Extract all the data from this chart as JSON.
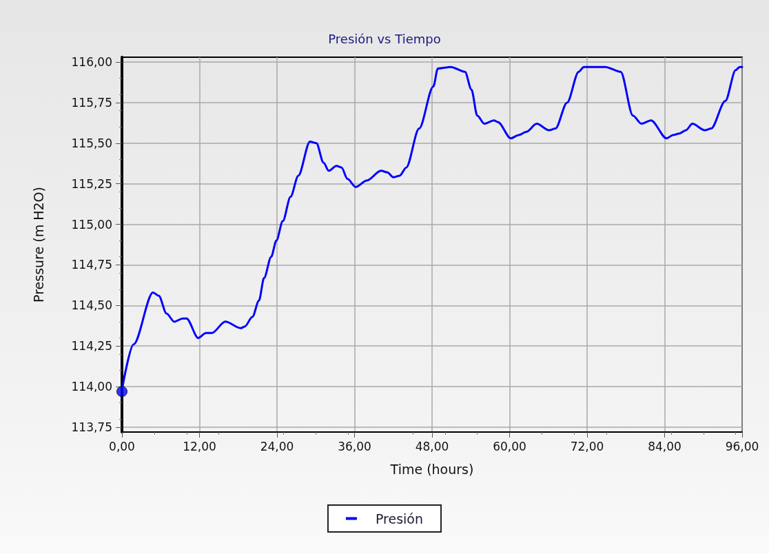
{
  "chart_data": {
    "type": "line",
    "title": "Presión vs Tiempo",
    "xlabel": "Time (hours)",
    "ylabel": "Pressure (m H2O)",
    "xlim": [
      0,
      96
    ],
    "xticks": [
      {
        "value": 0,
        "label": "0,00"
      },
      {
        "value": 12,
        "label": "12,00"
      },
      {
        "value": 24,
        "label": "24,00"
      },
      {
        "value": 36,
        "label": "36,00"
      },
      {
        "value": 48,
        "label": "48,00"
      },
      {
        "value": 60,
        "label": "60,00"
      },
      {
        "value": 72,
        "label": "72,00"
      },
      {
        "value": 84,
        "label": "84,00"
      },
      {
        "value": 96,
        "label": "96,00"
      }
    ],
    "ylim": [
      113.72,
      116.03
    ],
    "yticks": [
      {
        "value": 113.75,
        "label": "113,75"
      },
      {
        "value": 114,
        "label": "114,00"
      },
      {
        "value": 114.25,
        "label": "114,25"
      },
      {
        "value": 114.5,
        "label": "114,50"
      },
      {
        "value": 114.75,
        "label": "114,75"
      },
      {
        "value": 115,
        "label": "115,00"
      },
      {
        "value": 115.25,
        "label": "115,25"
      },
      {
        "value": 115.5,
        "label": "115,50"
      },
      {
        "value": 115.75,
        "label": "115,75"
      },
      {
        "value": 116,
        "label": "116,00"
      }
    ],
    "grid": true,
    "legend": "bottom",
    "line_style": "solid",
    "series": [
      {
        "name": "Presión",
        "color": "#0000ff",
        "marker": "none",
        "x": [
          0,
          1.8,
          4.8,
          5.7,
          6.9,
          8.1,
          9.4,
          10,
          11.8,
          13,
          13.9,
          16,
          18.4,
          19,
          20.2,
          21.2,
          22,
          23.1,
          23.9,
          24.9,
          26.1,
          27.3,
          29.1,
          30.1,
          31.2,
          32,
          33.2,
          34,
          34.9,
          36.2,
          37.9,
          40.1,
          41.1,
          42,
          43,
          44,
          46,
          48.2,
          48.9,
          50.9,
          53.1,
          54.1,
          55,
          56.1,
          57.6,
          58.2,
          60.2,
          61.4,
          62.6,
          64.2,
          66.1,
          67.1,
          68.9,
          70.7,
          71.5,
          74.8,
          77.2,
          79.1,
          80.4,
          81.9,
          84.3,
          85.3,
          86.3,
          87.3,
          88.3,
          90.2,
          91.2,
          93.4,
          95,
          95.6,
          96
        ],
        "values": [
          113.98,
          114.26,
          114.58,
          114.56,
          114.45,
          114.4,
          114.42,
          114.42,
          114.3,
          114.33,
          114.33,
          114.4,
          114.36,
          114.37,
          114.43,
          114.53,
          114.67,
          114.8,
          114.9,
          115.02,
          115.17,
          115.3,
          115.51,
          115.5,
          115.38,
          115.33,
          115.36,
          115.35,
          115.28,
          115.23,
          115.27,
          115.33,
          115.32,
          115.29,
          115.3,
          115.35,
          115.59,
          115.85,
          115.96,
          115.97,
          115.94,
          115.83,
          115.67,
          115.62,
          115.64,
          115.63,
          115.53,
          115.55,
          115.57,
          115.62,
          115.58,
          115.59,
          115.75,
          115.94,
          115.97,
          115.97,
          115.94,
          115.67,
          115.62,
          115.64,
          115.53,
          115.55,
          115.56,
          115.58,
          115.62,
          115.58,
          115.59,
          115.76,
          115.95,
          115.97,
          115.97
        ]
      },
      {
        "type": "scatter",
        "color": "#0000ff",
        "marker": "circle",
        "x": [
          0
        ],
        "values": [
          113.97
        ]
      }
    ]
  }
}
